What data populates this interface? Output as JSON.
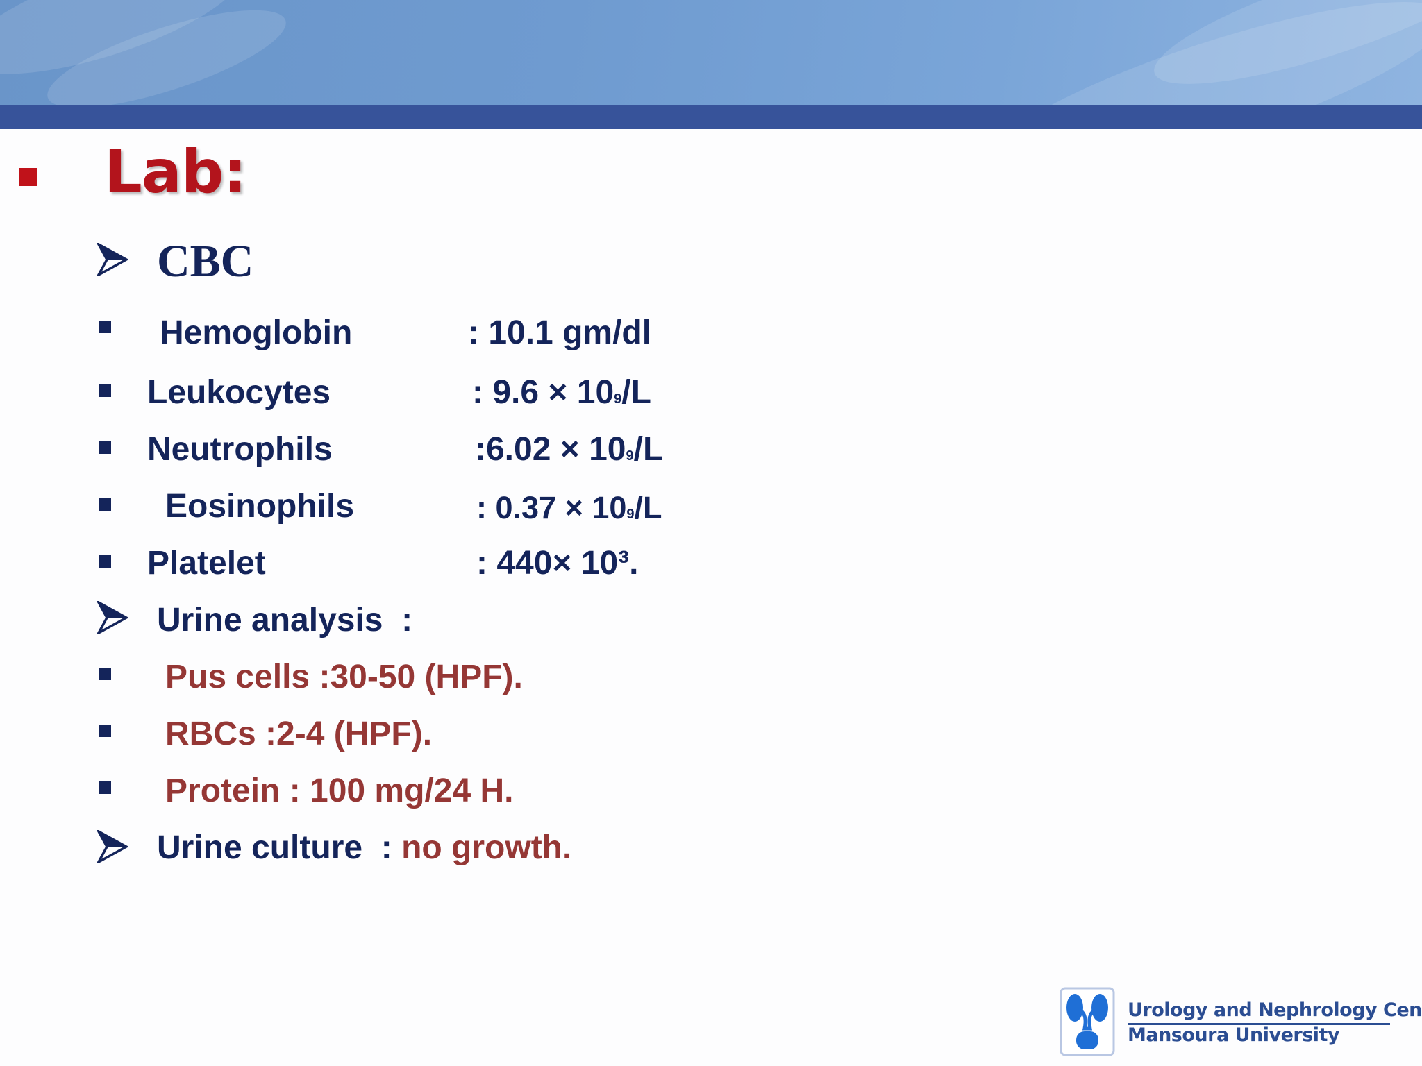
{
  "heading": {
    "title": "Lab:"
  },
  "cbc": {
    "label": "CBC",
    "items": [
      {
        "name": "Hemoglobin",
        "value": ": 10.1 gm/dl"
      },
      {
        "name": "Leukocytes",
        "value_prefix": ": 9.6 × 10",
        "value_sub": "9",
        "value_suffix": "/L"
      },
      {
        "name": "Neutrophils",
        "value_prefix": ":6.02 × 10",
        "value_sub": "9",
        "value_suffix": "/L"
      },
      {
        "name": "Eosinophils",
        "value_prefix": ": 0.37 × 10",
        "value_sub": "9",
        "value_suffix": "/L"
      },
      {
        "name": "Platelet",
        "value": ": 440× 10³."
      }
    ]
  },
  "urine_analysis": {
    "label": "Urine analysis  :",
    "items": [
      "Pus cells :30-50 (HPF).",
      "RBCs :2-4 (HPF).",
      "Protein : 100 mg/24 H."
    ]
  },
  "urine_culture": {
    "label": "Urine culture  : ",
    "value": "no growth."
  },
  "logo": {
    "line1": "Urology and Nephrology Center",
    "line2": "Mansoura University"
  },
  "colors": {
    "title_red": "#b3141c",
    "navy_text": "#14245a",
    "dark_red_text": "#953735",
    "header_blue": "#6f9bd0",
    "header_bar": "#37539a",
    "logo_blue": "#2b4d92"
  }
}
